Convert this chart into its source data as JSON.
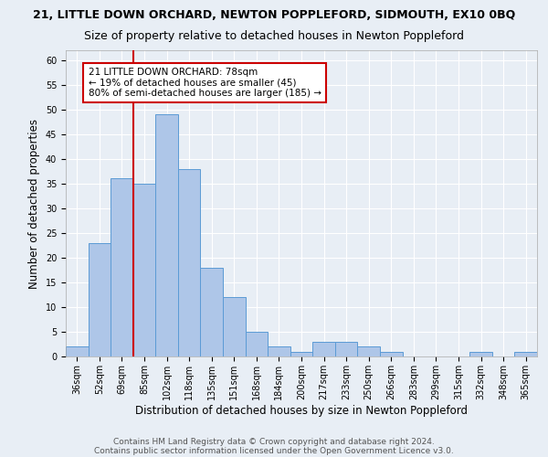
{
  "title": "21, LITTLE DOWN ORCHARD, NEWTON POPPLEFORD, SIDMOUTH, EX10 0BQ",
  "subtitle": "Size of property relative to detached houses in Newton Poppleford",
  "xlabel": "Distribution of detached houses by size in Newton Poppleford",
  "ylabel": "Number of detached properties",
  "categories": [
    "36sqm",
    "52sqm",
    "69sqm",
    "85sqm",
    "102sqm",
    "118sqm",
    "135sqm",
    "151sqm",
    "168sqm",
    "184sqm",
    "200sqm",
    "217sqm",
    "233sqm",
    "250sqm",
    "266sqm",
    "283sqm",
    "299sqm",
    "315sqm",
    "332sqm",
    "348sqm",
    "365sqm"
  ],
  "bar_heights": [
    2,
    23,
    36,
    35,
    49,
    38,
    18,
    12,
    5,
    2,
    1,
    3,
    3,
    2,
    1,
    0,
    0,
    0,
    1,
    0,
    1
  ],
  "bar_color": "#aec6e8",
  "bar_edge_color": "#5b9bd5",
  "ylim": [
    0,
    62
  ],
  "yticks": [
    0,
    5,
    10,
    15,
    20,
    25,
    30,
    35,
    40,
    45,
    50,
    55,
    60
  ],
  "vline_x": 2.5,
  "vline_color": "#cc0000",
  "annotation_text": "21 LITTLE DOWN ORCHARD: 78sqm\n← 19% of detached houses are smaller (45)\n80% of semi-detached houses are larger (185) →",
  "annotation_box_color": "#ffffff",
  "annotation_box_edge": "#cc0000",
  "footer1": "Contains HM Land Registry data © Crown copyright and database right 2024.",
  "footer2": "Contains public sector information licensed under the Open Government Licence v3.0.",
  "background_color": "#e8eef5",
  "grid_color": "#ffffff",
  "title_fontsize": 9,
  "subtitle_fontsize": 9,
  "label_fontsize": 8.5,
  "tick_fontsize": 7,
  "footer_fontsize": 6.5,
  "ann_fontsize": 7.5
}
